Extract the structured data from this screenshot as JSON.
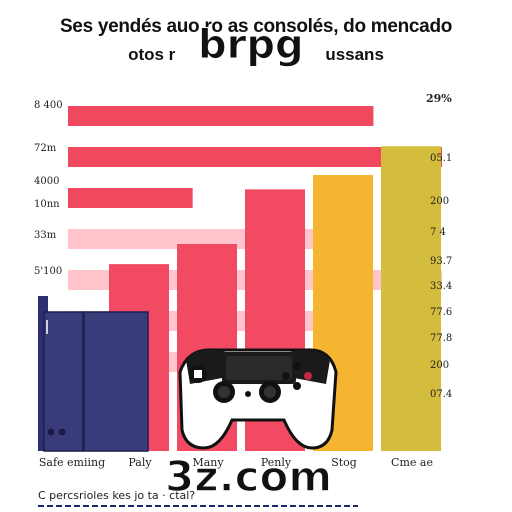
{
  "chart_data": {
    "type": "bar",
    "title": "Ses yendés auo ro as consolés, do mencado",
    "subtitle": "otos r",
    "subtitle_tail": "ussans",
    "right_top_label": "29%",
    "y_tick_labels": [
      "8 400",
      "72m",
      "4000",
      "10nn",
      "33m",
      "5'100"
    ],
    "right_labels": [
      "29%",
      "05.1",
      "200",
      "7 4",
      "93.7",
      "33.4",
      "77.6",
      "77.8",
      "200",
      "07.4"
    ],
    "categories": [
      "Safe emiing",
      "Paly",
      "Many",
      "Penly",
      "Stog",
      "Cme ae"
    ],
    "values": [
      60,
      65,
      72,
      91,
      96,
      106
    ],
    "bands": [
      {
        "value": 98,
        "color": "#f0495f"
      },
      {
        "value": 120,
        "color": "#f0495f"
      },
      {
        "value": 40,
        "color": "#f0495f"
      },
      {
        "value": 92,
        "color": "#ffc4cc"
      },
      {
        "value": 120,
        "color": "#ffc4cc"
      },
      {
        "value": 85,
        "color": "#ffc4cc"
      },
      {
        "value": 70,
        "color": "#ffc4cc"
      }
    ],
    "colors": {
      "console": "#3a3b7a",
      "console_dark": "#24255a",
      "bar_red": "#f24a62",
      "bar_orange": "#f5b531",
      "bar_gold": "#d4bd3c",
      "band_red": "#f0495f",
      "band_pink": "#ffc4cc"
    },
    "xlabel": "",
    "ylabel": "",
    "ylim": [
      0,
      120
    ],
    "grid": false,
    "legend": "none"
  },
  "watermarks": {
    "top": "brpg",
    "bottom": "3z.com"
  },
  "footer": {
    "text": "C percsrioles kes jo ta                    ·           ctal?"
  },
  "icons": {
    "controller": "gamepad-icon",
    "console": "console-icon"
  }
}
